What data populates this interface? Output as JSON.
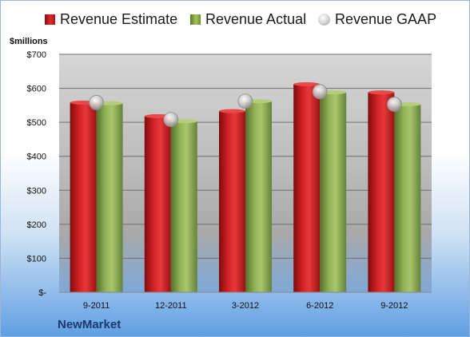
{
  "company": "NewMarket",
  "unit_label": "$millions",
  "legend": [
    {
      "label": "Revenue Estimate",
      "color": "#c0191c"
    },
    {
      "label": "Revenue Actual",
      "color": "#8aa84a"
    },
    {
      "label": "Revenue GAAP",
      "color": "#bfbfbf"
    }
  ],
  "chart_data": {
    "type": "bar",
    "categories": [
      "9-2011",
      "12-2011",
      "3-2012",
      "6-2012",
      "9-2012"
    ],
    "series": [
      {
        "name": "Revenue Estimate",
        "values": [
          558,
          518,
          533,
          612,
          588
        ]
      },
      {
        "name": "Revenue Actual",
        "values": [
          556,
          503,
          562,
          588,
          553
        ]
      },
      {
        "name": "Revenue GAAP",
        "values": [
          558,
          508,
          562,
          590,
          553
        ]
      }
    ],
    "ylabel": "$millions",
    "ylim": [
      0,
      700
    ],
    "ytick_labels": [
      "$-",
      "$100",
      "$200",
      "$300",
      "$400",
      "$500",
      "$600",
      "$700"
    ],
    "grid": true,
    "legend_position": "top"
  }
}
